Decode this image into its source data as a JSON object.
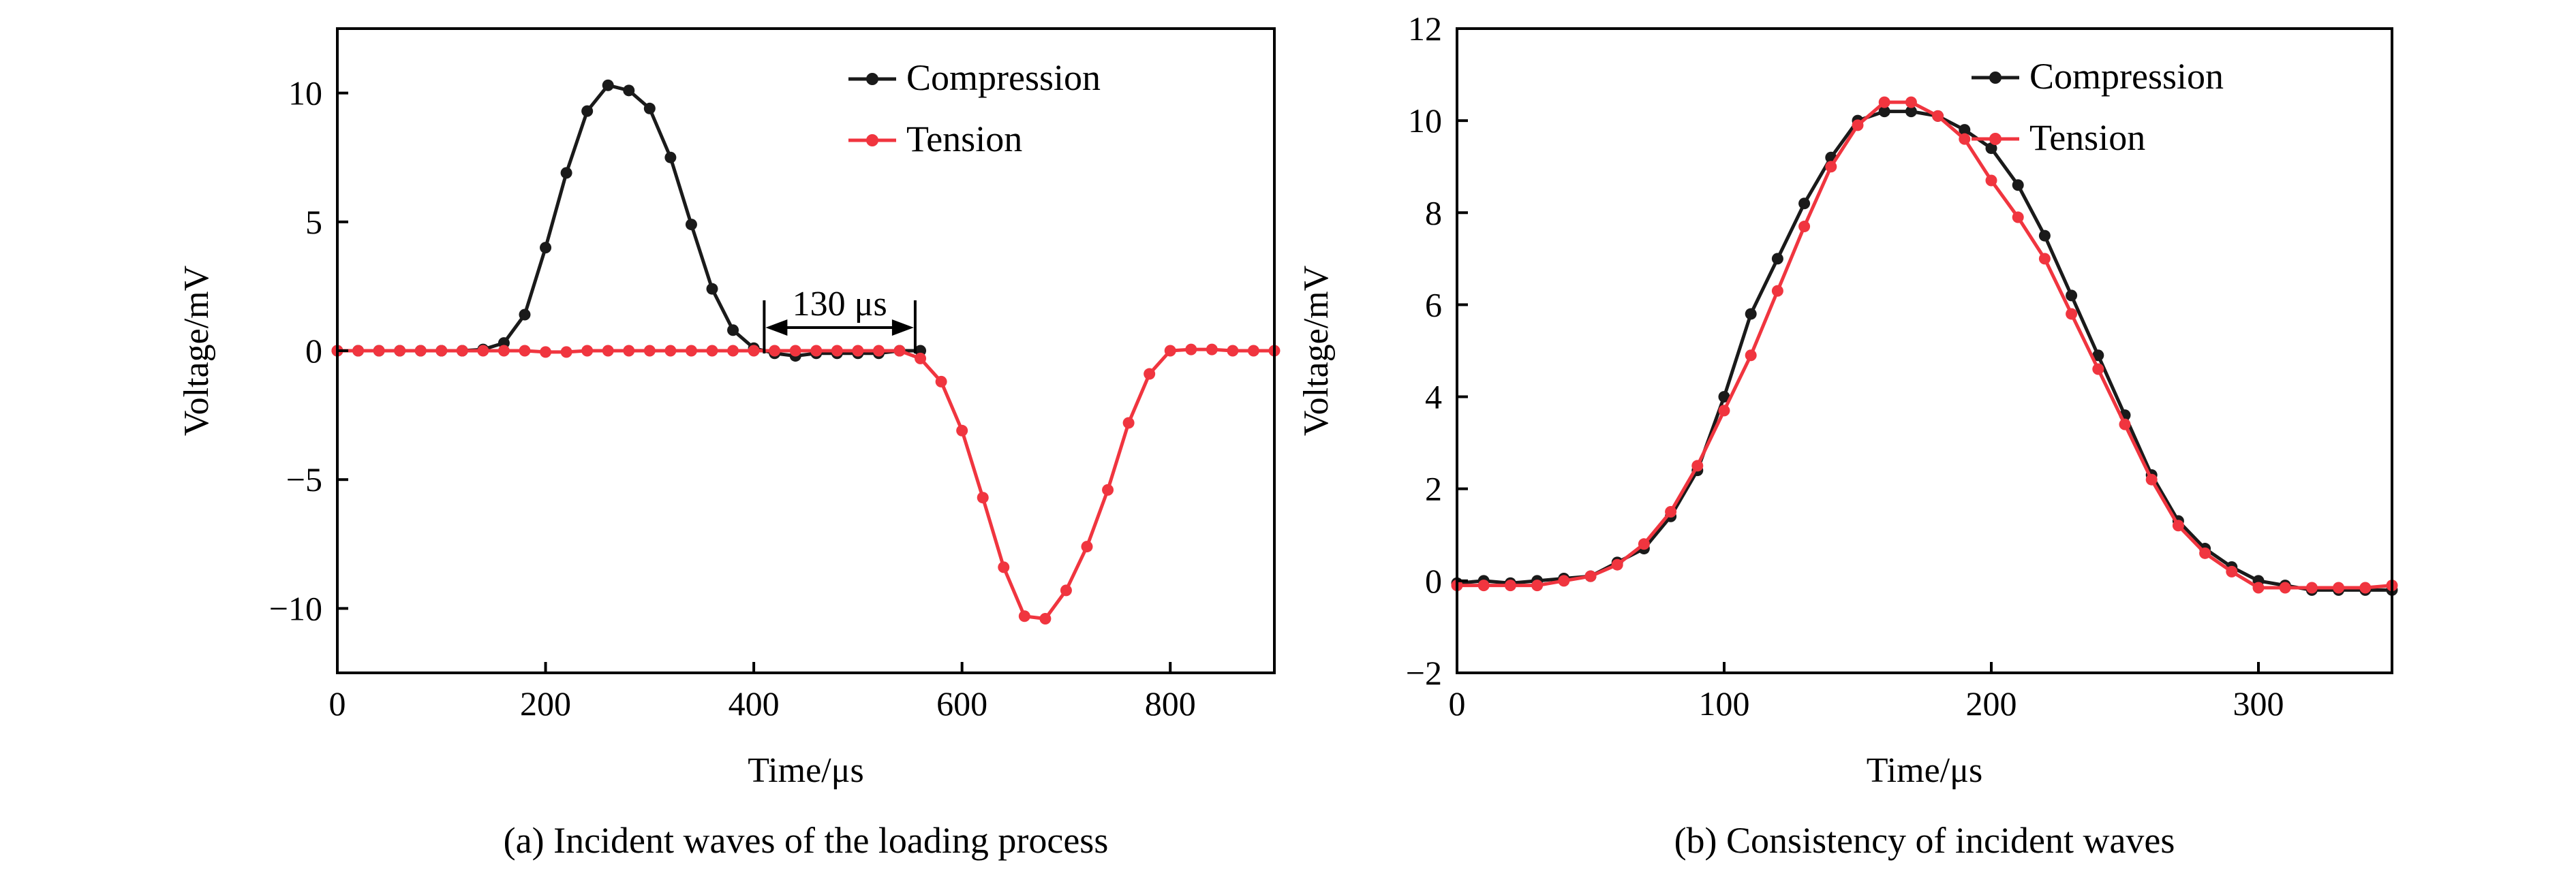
{
  "chart_data": [
    {
      "type": "line",
      "caption": "(a) Incident waves of the loading process",
      "xlabel": "Time/μs",
      "ylabel": "Voltage/mV",
      "xlim": [
        0,
        900
      ],
      "ylim": [
        -12.5,
        12.5
      ],
      "xticks": [
        0,
        200,
        400,
        600,
        800
      ],
      "yticks": [
        -10,
        -5,
        0,
        5,
        10
      ],
      "ytick_labels": [
        "−10",
        "−5",
        "0",
        "5",
        "10"
      ],
      "legend": "top-right",
      "annotation": {
        "text": "130 μs",
        "from": 410,
        "to": 555,
        "y": 0.9
      },
      "series": [
        {
          "name": "Compression",
          "color": "#1a1a1a",
          "points": [
            [
              0,
              0
            ],
            [
              20,
              0
            ],
            [
              40,
              0
            ],
            [
              60,
              0
            ],
            [
              80,
              0
            ],
            [
              100,
              0
            ],
            [
              120,
              0
            ],
            [
              140,
              0.05
            ],
            [
              160,
              0.3
            ],
            [
              180,
              1.4
            ],
            [
              200,
              4.0
            ],
            [
              220,
              6.9
            ],
            [
              240,
              9.3
            ],
            [
              260,
              10.3
            ],
            [
              280,
              10.1
            ],
            [
              300,
              9.4
            ],
            [
              320,
              7.5
            ],
            [
              340,
              4.9
            ],
            [
              360,
              2.4
            ],
            [
              380,
              0.8
            ],
            [
              400,
              0.1
            ],
            [
              420,
              -0.1
            ],
            [
              440,
              -0.2
            ],
            [
              460,
              -0.1
            ],
            [
              480,
              -0.1
            ],
            [
              500,
              -0.1
            ],
            [
              520,
              -0.1
            ],
            [
              540,
              0
            ],
            [
              560,
              0
            ]
          ]
        },
        {
          "name": "Tension",
          "color": "#f0353f",
          "points": [
            [
              0,
              0
            ],
            [
              20,
              0
            ],
            [
              40,
              0
            ],
            [
              60,
              0
            ],
            [
              80,
              0
            ],
            [
              100,
              0
            ],
            [
              120,
              0
            ],
            [
              140,
              0
            ],
            [
              160,
              0
            ],
            [
              180,
              0
            ],
            [
              200,
              -0.05
            ],
            [
              220,
              -0.05
            ],
            [
              240,
              0
            ],
            [
              260,
              0
            ],
            [
              280,
              0
            ],
            [
              300,
              0
            ],
            [
              320,
              0
            ],
            [
              340,
              0
            ],
            [
              360,
              0
            ],
            [
              380,
              0
            ],
            [
              400,
              0
            ],
            [
              420,
              0
            ],
            [
              440,
              0
            ],
            [
              460,
              0
            ],
            [
              480,
              0
            ],
            [
              500,
              0
            ],
            [
              520,
              0
            ],
            [
              540,
              0
            ],
            [
              560,
              -0.3
            ],
            [
              580,
              -1.2
            ],
            [
              600,
              -3.1
            ],
            [
              620,
              -5.7
            ],
            [
              640,
              -8.4
            ],
            [
              660,
              -10.3
            ],
            [
              680,
              -10.4
            ],
            [
              700,
              -9.3
            ],
            [
              720,
              -7.6
            ],
            [
              740,
              -5.4
            ],
            [
              760,
              -2.8
            ],
            [
              780,
              -0.9
            ],
            [
              800,
              0
            ],
            [
              820,
              0.05
            ],
            [
              840,
              0.05
            ],
            [
              860,
              0
            ],
            [
              880,
              0
            ],
            [
              900,
              0
            ]
          ]
        }
      ]
    },
    {
      "type": "line",
      "caption": "(b) Consistency of incident waves",
      "xlabel": "Time/μs",
      "ylabel": "Voltage/mV",
      "xlim": [
        0,
        350
      ],
      "ylim": [
        -2,
        12
      ],
      "xticks": [
        0,
        100,
        200,
        300
      ],
      "yticks": [
        -2,
        0,
        2,
        4,
        6,
        8,
        10,
        12
      ],
      "ytick_labels": [
        "−2",
        "0",
        "2",
        "4",
        "6",
        "8",
        "10",
        "12"
      ],
      "legend": "top-right",
      "series": [
        {
          "name": "Compression",
          "color": "#1a1a1a",
          "points": [
            [
              0,
              -0.05
            ],
            [
              10,
              0
            ],
            [
              20,
              -0.05
            ],
            [
              30,
              0
            ],
            [
              40,
              0.05
            ],
            [
              50,
              0.1
            ],
            [
              60,
              0.4
            ],
            [
              70,
              0.7
            ],
            [
              80,
              1.4
            ],
            [
              90,
              2.4
            ],
            [
              100,
              4.0
            ],
            [
              110,
              5.8
            ],
            [
              120,
              7.0
            ],
            [
              130,
              8.2
            ],
            [
              140,
              9.2
            ],
            [
              150,
              10.0
            ],
            [
              160,
              10.2
            ],
            [
              170,
              10.2
            ],
            [
              180,
              10.1
            ],
            [
              190,
              9.8
            ],
            [
              200,
              9.4
            ],
            [
              210,
              8.6
            ],
            [
              220,
              7.5
            ],
            [
              230,
              6.2
            ],
            [
              240,
              4.9
            ],
            [
              250,
              3.6
            ],
            [
              260,
              2.3
            ],
            [
              270,
              1.3
            ],
            [
              280,
              0.7
            ],
            [
              290,
              0.3
            ],
            [
              300,
              0.0
            ],
            [
              310,
              -0.1
            ],
            [
              320,
              -0.2
            ],
            [
              330,
              -0.2
            ],
            [
              340,
              -0.2
            ],
            [
              350,
              -0.2
            ]
          ]
        },
        {
          "name": "Tension",
          "color": "#f0353f",
          "points": [
            [
              0,
              -0.1
            ],
            [
              10,
              -0.1
            ],
            [
              20,
              -0.1
            ],
            [
              30,
              -0.1
            ],
            [
              40,
              0
            ],
            [
              50,
              0.1
            ],
            [
              60,
              0.35
            ],
            [
              70,
              0.8
            ],
            [
              80,
              1.5
            ],
            [
              90,
              2.5
            ],
            [
              100,
              3.7
            ],
            [
              110,
              4.9
            ],
            [
              120,
              6.3
            ],
            [
              130,
              7.7
            ],
            [
              140,
              9.0
            ],
            [
              150,
              9.9
            ],
            [
              160,
              10.4
            ],
            [
              170,
              10.4
            ],
            [
              180,
              10.1
            ],
            [
              190,
              9.6
            ],
            [
              200,
              8.7
            ],
            [
              210,
              7.9
            ],
            [
              220,
              7.0
            ],
            [
              230,
              5.8
            ],
            [
              240,
              4.6
            ],
            [
              250,
              3.4
            ],
            [
              260,
              2.2
            ],
            [
              270,
              1.2
            ],
            [
              280,
              0.6
            ],
            [
              290,
              0.2
            ],
            [
              300,
              -0.15
            ],
            [
              310,
              -0.15
            ],
            [
              320,
              -0.15
            ],
            [
              330,
              -0.15
            ],
            [
              340,
              -0.15
            ],
            [
              350,
              -0.1
            ]
          ]
        }
      ]
    }
  ]
}
